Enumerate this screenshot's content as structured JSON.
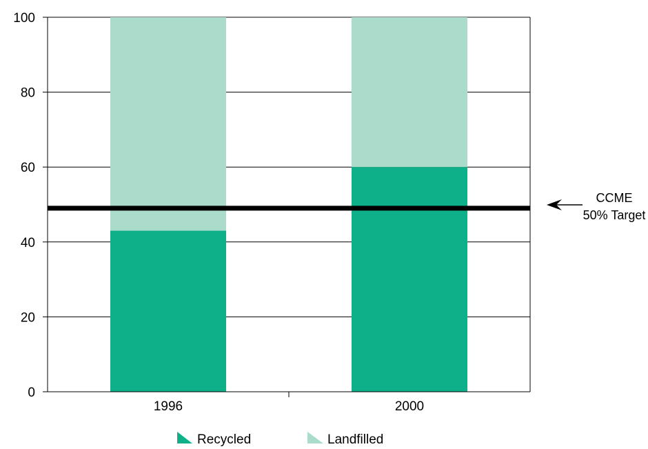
{
  "chart_data": {
    "type": "bar",
    "stacked": true,
    "categories": [
      "1996",
      "2000"
    ],
    "series": [
      {
        "name": "Recycled",
        "values": [
          43,
          60
        ],
        "color": "#0db088"
      },
      {
        "name": "Landfilled",
        "values": [
          57,
          40
        ],
        "color": "#abdccb"
      }
    ],
    "title": "",
    "xlabel": "",
    "ylabel": "",
    "ylim": [
      0,
      100
    ],
    "yticks": [
      0,
      20,
      40,
      60,
      80,
      100
    ],
    "grid": true,
    "legend_position": "bottom",
    "reference_line": {
      "value": 49,
      "color": "#000000"
    },
    "annotation": {
      "line1": "CCME",
      "line2": "50% Target"
    }
  }
}
